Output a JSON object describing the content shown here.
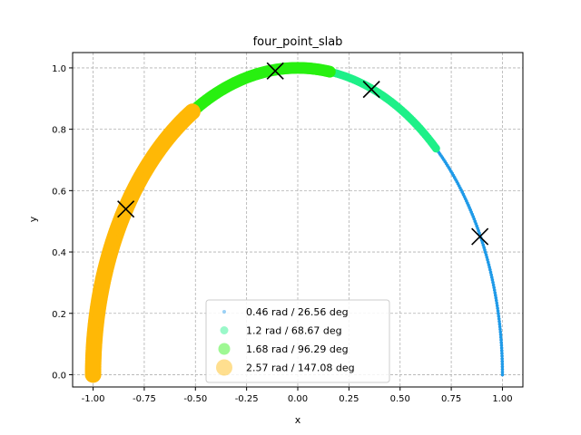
{
  "chart_data": {
    "type": "scatter",
    "title": "four_point_slab",
    "xlabel": "x",
    "ylabel": "y",
    "xlim": [
      -1.1,
      1.1
    ],
    "ylim": [
      -0.04,
      1.05
    ],
    "x_ticks": [
      "-1.00",
      "-0.75",
      "-0.50",
      "-0.25",
      "0.00",
      "0.25",
      "0.50",
      "0.75",
      "1.00"
    ],
    "y_ticks": [
      "0.0",
      "0.2",
      "0.4",
      "0.6",
      "0.8",
      "1.0"
    ],
    "grid": true,
    "legend_position": "lower-center",
    "series": [
      {
        "name": "0.46 rad / 26.56 deg",
        "color": "#1f9ae8",
        "theta_range_deg": [
          0,
          47.5
        ]
      },
      {
        "name": "1.2 rad / 68.67 deg",
        "color": "#1ef088",
        "theta_range_deg": [
          47.5,
          81
        ]
      },
      {
        "name": "1.68 rad / 96.29 deg",
        "color": "#28f010",
        "theta_range_deg": [
          81,
          121
        ]
      },
      {
        "name": "2.57 rad / 147.08 deg",
        "color": "#ffb806",
        "theta_range_deg": [
          121,
          180
        ]
      }
    ],
    "markers": [
      {
        "x": 0.89,
        "y": 0.45
      },
      {
        "x": 0.36,
        "y": 0.93
      },
      {
        "x": -0.11,
        "y": 0.99
      },
      {
        "x": -0.84,
        "y": 0.54
      }
    ]
  }
}
